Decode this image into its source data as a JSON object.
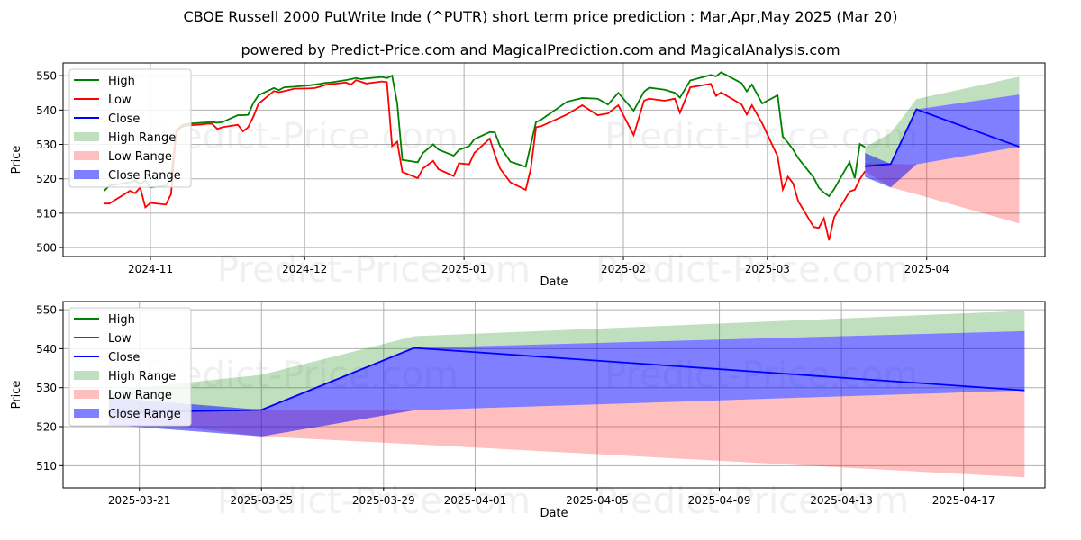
{
  "title": "CBOE Russell 2000 PutWrite Inde (^PUTR) short term price prediction : Mar,Apr,May 2025 (Mar 20)",
  "subtitle": "powered by Predict-Price.com and MagicalPrediction.com and MagicalAnalysis.com",
  "watermark": "Predict-Price.com",
  "colors": {
    "high": "#008000",
    "low": "#ff0000",
    "close": "#0000ff",
    "high_range": "#b3dab3",
    "low_range": "#ffbdbd",
    "close_range": "#7f7fff"
  },
  "legend": [
    "High",
    "Low",
    "Close",
    "High Range",
    "Low Range",
    "Close Range"
  ],
  "chart_data": [
    {
      "type": "line",
      "xlabel": "Date",
      "ylabel": "Price",
      "ylim": [
        497.4,
        553.7
      ],
      "xlim": [
        "2024-10-15",
        "2025-04-24"
      ],
      "yticks": [
        500,
        510,
        520,
        530,
        540,
        550
      ],
      "xticks": [
        [
          "2024-11-01",
          "2024-11"
        ],
        [
          "2024-12-01",
          "2024-12"
        ],
        [
          "2025-01-01",
          "2025-01"
        ],
        [
          "2025-02-01",
          "2025-02"
        ],
        [
          "2025-03-01",
          "2025-03"
        ],
        [
          "2025-04-01",
          "2025-04"
        ]
      ],
      "legend_position": "upper-left",
      "grid": true,
      "history": {
        "x": [
          "2024-10-23",
          "2024-10-24",
          "2024-10-28",
          "2024-10-29",
          "2024-10-30",
          "2024-10-31",
          "2024-11-01",
          "2024-11-04",
          "2024-11-05",
          "2024-11-06",
          "2024-11-07",
          "2024-11-08",
          "2024-11-11",
          "2024-11-12",
          "2024-11-13",
          "2024-11-14",
          "2024-11-15",
          "2024-11-18",
          "2024-11-19",
          "2024-11-20",
          "2024-11-21",
          "2024-11-22",
          "2024-11-25",
          "2024-11-26",
          "2024-11-27",
          "2024-11-29",
          "2024-12-02",
          "2024-12-03",
          "2024-12-04",
          "2024-12-05",
          "2024-12-06",
          "2024-12-09",
          "2024-12-10",
          "2024-12-11",
          "2024-12-12",
          "2024-12-13",
          "2024-12-16",
          "2024-12-17",
          "2024-12-18",
          "2024-12-19",
          "2024-12-20",
          "2024-12-23",
          "2024-12-24",
          "2024-12-26",
          "2024-12-27",
          "2024-12-30",
          "2024-12-31",
          "2025-01-02",
          "2025-01-03",
          "2025-01-06",
          "2025-01-07",
          "2025-01-08",
          "2025-01-10",
          "2025-01-13",
          "2025-01-14",
          "2025-01-15",
          "2025-01-16",
          "2025-01-21",
          "2025-01-24",
          "2025-01-27",
          "2025-01-29",
          "2025-01-31",
          "2025-02-03",
          "2025-02-05",
          "2025-02-06",
          "2025-02-09",
          "2025-02-11",
          "2025-02-12",
          "2025-02-14",
          "2025-02-18",
          "2025-02-19",
          "2025-02-20",
          "2025-02-24",
          "2025-02-25",
          "2025-02-26",
          "2025-02-28",
          "2025-03-03",
          "2025-03-04",
          "2025-03-05",
          "2025-03-06",
          "2025-03-07",
          "2025-03-10",
          "2025-03-11",
          "2025-03-12",
          "2025-03-13",
          "2025-03-14",
          "2025-03-17",
          "2025-03-18",
          "2025-03-19",
          "2025-03-20"
        ],
        "high": [
          516.5,
          518,
          519,
          519.5,
          518.5,
          519.5,
          517.5,
          518,
          520,
          534,
          535.5,
          536,
          536.3,
          536.4,
          536.5,
          536.3,
          536.5,
          538.5,
          538.5,
          538.6,
          542,
          544.3,
          546.4,
          545.8,
          546.6,
          546.8,
          547.2,
          547.4,
          547.6,
          547.9,
          548,
          548.7,
          549,
          549.3,
          549,
          549.2,
          549.6,
          549.3,
          550,
          542,
          525.5,
          524.8,
          527.5,
          530,
          528.5,
          526.7,
          528.4,
          529.5,
          531.5,
          533.6,
          533.5,
          529.5,
          525,
          523.5,
          530,
          536.5,
          537.2,
          542.4,
          543.5,
          543.3,
          541.6,
          545,
          539.8,
          545.3,
          546.5,
          545.9,
          545,
          543.6,
          548.6,
          550.2,
          549.8,
          551,
          547.8,
          545.4,
          547.4,
          541.9,
          544.3,
          532.3,
          530.5,
          528.5,
          526,
          520.4,
          517.4,
          516,
          514.9,
          517,
          524.9,
          520.2,
          530.1,
          529.2
        ],
        "low": [
          512.8,
          512.8,
          516.5,
          515.8,
          517.5,
          511.7,
          513,
          512.5,
          515.5,
          533.5,
          535,
          535.5,
          535.8,
          536,
          536,
          534.5,
          535,
          535.7,
          533.8,
          535,
          538,
          541.8,
          545.5,
          545.2,
          545.5,
          546.2,
          546.3,
          546.4,
          546.8,
          547.3,
          547.5,
          548,
          547.4,
          548.7,
          548.2,
          547.7,
          548.3,
          548.1,
          529.5,
          530.8,
          522,
          520.2,
          523,
          525.2,
          522.8,
          520.8,
          524.5,
          524.2,
          527.5,
          531.7,
          527,
          523,
          519,
          516.8,
          523,
          535,
          535.3,
          538.7,
          541.4,
          538.5,
          539,
          541.4,
          532.7,
          542.7,
          543.3,
          542.7,
          543.3,
          539.2,
          546.6,
          547.6,
          544.1,
          545.1,
          541.6,
          538.7,
          541.4,
          536.1,
          526.5,
          516.9,
          520.6,
          518.7,
          513.5,
          506,
          505.7,
          508.5,
          502.1,
          508.8,
          516.3,
          516.8,
          519.9,
          522.2
        ]
      }
    },
    {
      "type": "area",
      "xlabel": "Date",
      "ylabel": "Price",
      "ylim": [
        504.3,
        552.1
      ],
      "xlim": [
        "2025-03-18T12:00",
        "2025-04-19T16:00"
      ],
      "yticks": [
        510,
        520,
        530,
        540,
        550
      ],
      "xticks": [
        [
          "2025-03-21",
          "2025-03-21"
        ],
        [
          "2025-03-25",
          "2025-03-25"
        ],
        [
          "2025-03-29",
          "2025-03-29"
        ],
        [
          "2025-04-01",
          "2025-04-01"
        ],
        [
          "2025-04-05",
          "2025-04-05"
        ],
        [
          "2025-04-09",
          "2025-04-09"
        ],
        [
          "2025-04-13",
          "2025-04-13"
        ],
        [
          "2025-04-17",
          "2025-04-17"
        ]
      ],
      "legend_position": "upper-left",
      "grid": true
    }
  ],
  "forecast": {
    "x": [
      "2025-03-20",
      "2025-03-25",
      "2025-03-30",
      "2025-04-19"
    ],
    "close": [
      523.6,
      524.3,
      540.2,
      529.3
    ],
    "high_range": [
      [
        523.6,
        529.2
      ],
      [
        524.3,
        533.3
      ],
      [
        540.2,
        543.2
      ],
      [
        544.5,
        549.7
      ]
    ],
    "low_range": [
      [
        522.2,
        524.5
      ],
      [
        517.5,
        524.3
      ],
      [
        515.5,
        524.2
      ],
      [
        507,
        529.3
      ]
    ],
    "close_range": [
      [
        520.5,
        527.5
      ],
      [
        517.5,
        524.3
      ],
      [
        524.2,
        540.2
      ],
      [
        529.3,
        544.5
      ]
    ]
  }
}
